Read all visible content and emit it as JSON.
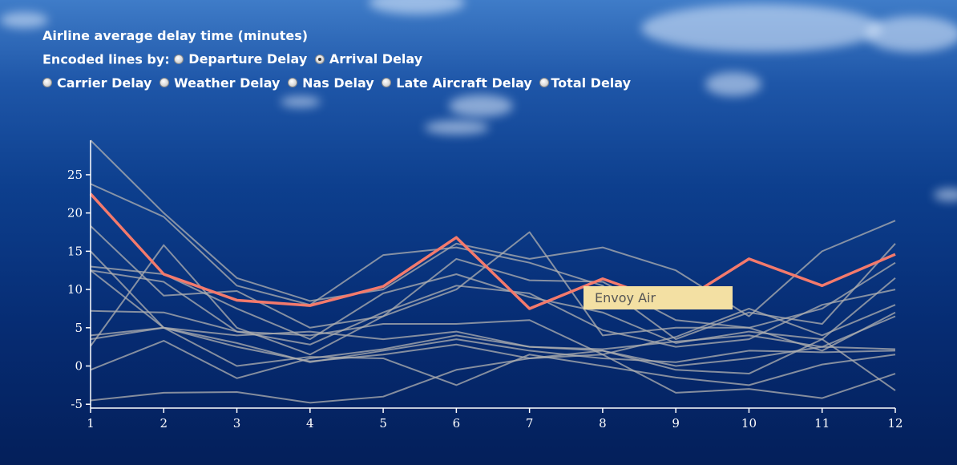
{
  "header": {
    "title": "Airline average delay time (minutes)",
    "encoded_label": "Encoded lines by:"
  },
  "options": [
    {
      "label": "Departure Delay",
      "checked": false
    },
    {
      "label": "Arrival Delay",
      "checked": true
    },
    {
      "label": "Carrier Delay",
      "checked": false
    },
    {
      "label": "Weather Delay",
      "checked": false
    },
    {
      "label": "Nas Delay",
      "checked": false
    },
    {
      "label": "Late Aircraft Delay",
      "checked": false
    },
    {
      "label": "Total Delay",
      "checked": false
    }
  ],
  "tooltip": {
    "text": "Envoy Air"
  },
  "colors": {
    "highlight": "#f47a6c",
    "line": "#b0b0b0",
    "axis": "#ffffff",
    "tooltip_bg": "#f3e0a3"
  },
  "chart_data": {
    "type": "line",
    "x": [
      1,
      2,
      3,
      4,
      5,
      6,
      7,
      8,
      9,
      10,
      11,
      12
    ],
    "xlim": [
      1,
      12
    ],
    "ylim": [
      -5.5,
      29.5
    ],
    "yticks": [
      -5,
      0,
      5,
      10,
      15,
      20,
      25
    ],
    "xlabel": "",
    "ylabel": "",
    "highlight_index": 0,
    "series": [
      {
        "name": "Envoy Air",
        "values": [
          22.5,
          12.0,
          8.6,
          7.9,
          10.4,
          16.8,
          7.5,
          11.4,
          8.0,
          14.0,
          10.5,
          14.6
        ]
      },
      {
        "name": "",
        "values": [
          29.5,
          20.0,
          11.5,
          8.5,
          10.0,
          16.0,
          14.0,
          15.5,
          12.5,
          6.5,
          15.0,
          19.0
        ]
      },
      {
        "name": "",
        "values": [
          23.8,
          19.5,
          10.5,
          8.0,
          14.5,
          15.5,
          13.5,
          10.5,
          3.5,
          7.0,
          5.5,
          16.0
        ]
      },
      {
        "name": "",
        "values": [
          18.3,
          9.2,
          9.8,
          5.0,
          6.5,
          14.0,
          11.2,
          11.0,
          6.0,
          5.0,
          7.5,
          13.5
        ]
      },
      {
        "name": "",
        "values": [
          13.0,
          12.0,
          7.5,
          3.5,
          9.5,
          12.0,
          9.0,
          7.0,
          3.0,
          4.5,
          3.5,
          11.5
        ]
      },
      {
        "name": "",
        "values": [
          12.5,
          11.0,
          4.5,
          2.8,
          7.0,
          10.5,
          9.5,
          4.7,
          2.5,
          3.5,
          8.0,
          10.0
        ]
      },
      {
        "name": "",
        "values": [
          7.2,
          7.0,
          4.5,
          4.0,
          5.5,
          5.5,
          6.0,
          1.5,
          3.8,
          7.5,
          4.0,
          8.0
        ]
      },
      {
        "name": "",
        "values": [
          2.6,
          15.8,
          5.0,
          1.5,
          6.5,
          10.0,
          17.5,
          4.0,
          5.0,
          5.0,
          2.0,
          7.0
        ]
      },
      {
        "name": "",
        "values": [
          4.0,
          5.0,
          4.0,
          4.5,
          3.5,
          4.5,
          2.5,
          2.2,
          3.2,
          4.0,
          2.5,
          6.5
        ]
      },
      {
        "name": "",
        "values": [
          12.5,
          5.0,
          3.0,
          0.5,
          2.0,
          3.5,
          2.0,
          1.0,
          0.5,
          2.0,
          1.8,
          2.0
        ]
      },
      {
        "name": "",
        "values": [
          15.0,
          5.0,
          2.5,
          0.6,
          1.5,
          2.8,
          1.0,
          2.0,
          0.0,
          1.0,
          2.5,
          2.2
        ]
      },
      {
        "name": "",
        "values": [
          -0.5,
          3.3,
          -1.6,
          1.0,
          2.2,
          4.0,
          2.5,
          2.0,
          -0.5,
          -1.0,
          3.5,
          -3.2
        ]
      },
      {
        "name": "",
        "values": [
          -4.5,
          -3.5,
          -3.4,
          -4.8,
          -4.0,
          -0.5,
          1.0,
          1.5,
          -3.5,
          -3.0,
          -4.2,
          -1.0
        ]
      },
      {
        "name": "",
        "values": [
          3.5,
          5.0,
          0.0,
          1.2,
          1.0,
          -2.5,
          1.5,
          0.0,
          -1.5,
          -2.5,
          0.2,
          1.5
        ]
      }
    ]
  }
}
